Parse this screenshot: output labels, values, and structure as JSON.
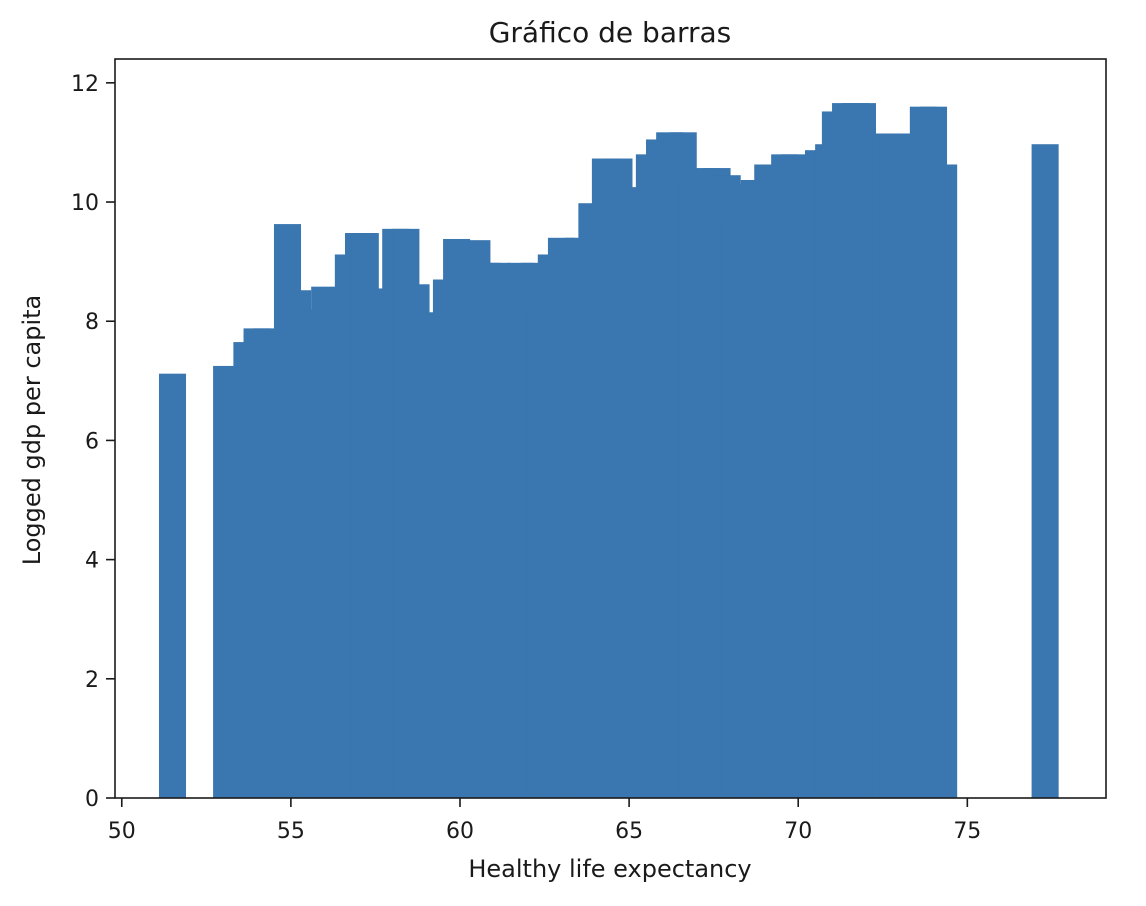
{
  "chart_data": {
    "type": "bar",
    "title": "Gráfico de barras",
    "xlabel": "Healthy life expectancy",
    "ylabel": "Logged gdp per capita",
    "xlim": [
      49.8,
      79.1
    ],
    "ylim": [
      0,
      12.4
    ],
    "xticks": [
      50,
      55,
      60,
      65,
      70,
      75
    ],
    "yticks": [
      0,
      2,
      4,
      6,
      8,
      10,
      12
    ],
    "grid": false,
    "bar_color": "#3a76af",
    "bar_width": 0.8,
    "x": [
      51.5,
      53.1,
      53.7,
      54.0,
      54.3,
      54.9,
      55.2,
      55.4,
      55.7,
      56.0,
      56.5,
      56.7,
      57.0,
      57.2,
      57.5,
      57.8,
      58.1,
      58.4,
      58.7,
      59.0,
      59.4,
      59.6,
      59.9,
      60.5,
      60.8,
      61.1,
      61.5,
      61.8,
      62.2,
      62.4,
      62.7,
      63.0,
      63.5,
      63.9,
      64.3,
      64.7,
      65.0,
      65.2,
      65.6,
      65.9,
      66.2,
      66.6,
      66.9,
      67.0,
      67.3,
      67.6,
      67.9,
      68.1,
      68.2,
      68.4,
      68.7,
      69.1,
      69.4,
      69.6,
      69.9,
      70.2,
      70.4,
      70.6,
      70.9,
      71.1,
      71.4,
      71.7,
      71.9,
      72.2,
      72.6,
      72.8,
      73.1,
      73.4,
      73.7,
      74.0,
      74.3,
      77.3
    ],
    "values": [
      7.12,
      7.25,
      7.65,
      7.88,
      7.88,
      9.63,
      8.52,
      8.1,
      8.2,
      8.58,
      8.15,
      9.12,
      9.48,
      9.48,
      8.55,
      7.7,
      9.55,
      9.55,
      8.62,
      8.1,
      8.15,
      8.7,
      9.38,
      9.36,
      8.98,
      8.98,
      8.43,
      8.98,
      8.98,
      8.25,
      9.12,
      9.4,
      9.4,
      9.98,
      10.73,
      10.73,
      10.25,
      10.2,
      10.8,
      11.05,
      11.17,
      11.17,
      10.35,
      10.32,
      10.57,
      10.57,
      10.45,
      9.65,
      9.78,
      10.3,
      10.37,
      10.63,
      10.63,
      10.8,
      10.8,
      10.72,
      10.72,
      10.87,
      10.97,
      11.52,
      11.66,
      11.66,
      11.66,
      10.93,
      11.15,
      11.15,
      11.15,
      10.72,
      11.6,
      11.6,
      10.63,
      10.97
    ]
  }
}
